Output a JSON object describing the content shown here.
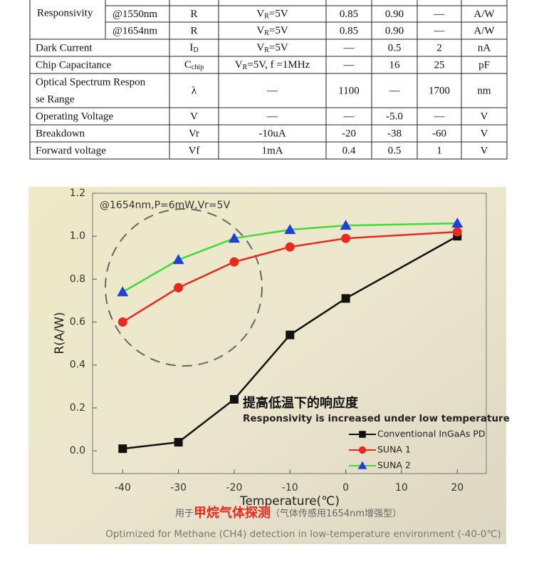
{
  "table": {
    "rows": [
      [
        "Responsivity",
        "@1550nm",
        "R",
        {
          "text": "V",
          "sub": "R",
          "after": "=5V"
        },
        "0.85",
        "0.90",
        "—",
        "A/W"
      ],
      [
        "@1654nm",
        "R",
        {
          "text": "V",
          "sub": "R",
          "after": "=5V"
        },
        "0.85",
        "0.90",
        "—",
        "A/W"
      ],
      [
        "Dark Current",
        {
          "text": "I",
          "sub": "D"
        },
        {
          "text": "V",
          "sub": "R",
          "after": "=5V"
        },
        "—",
        "0.5",
        "2",
        "nA"
      ],
      [
        "Chip Capacitance",
        {
          "text": "C",
          "sub": "chip"
        },
        {
          "text": "V",
          "sub": "R",
          "after": "=5V, f =1MHz"
        },
        "—",
        "16",
        "25",
        "pF"
      ],
      [
        [
          "Optical Spectrum Respon",
          "se Range"
        ],
        "λ",
        "—",
        "1100",
        "—",
        "1700",
        "nm"
      ],
      [
        "Operating Voltage",
        "V",
        "—",
        "—",
        "-5.0",
        "—",
        "V"
      ],
      [
        "Breakdown",
        "Vr",
        "-10uA",
        "-20",
        "-38",
        "-60",
        "V"
      ],
      [
        "Forward voltage",
        "Vf",
        "1mA",
        "0.4",
        "0.5",
        "1",
        "V"
      ]
    ]
  },
  "chart_data": {
    "type": "line",
    "annotation": "@1654nm,P=6mW,Vr=5V",
    "headline": "提高低温下的响应度",
    "subheadline": "Responsivity is increased under low temperature",
    "x_label": "Temperature(℃)",
    "y_label": "R(A/W)",
    "caption": [
      "用于",
      "甲烷气体探测",
      "（气体传感用1654nm增强型）"
    ],
    "footnote": "Optimized for Methane (CH4) detection in low-temperature environment (-40-0℃)",
    "x": [
      -40,
      -30,
      -20,
      -10,
      0,
      20
    ],
    "series": [
      {
        "name": "Conventional InGaAs PD",
        "color": "#111111",
        "marker_color": "#111111",
        "marker": "square",
        "values": [
          0.01,
          0.04,
          0.24,
          0.54,
          0.71,
          1.0
        ]
      },
      {
        "name": "SUNA 1",
        "color": "#e8291e",
        "marker_color": "#e8291e",
        "marker": "circle",
        "values": [
          0.6,
          0.76,
          0.88,
          0.95,
          0.99,
          1.02
        ]
      },
      {
        "name": "SUNA 2",
        "color": "#3fdc35",
        "marker_color": "#1f3fd6",
        "marker": "triangle",
        "values": [
          0.74,
          0.89,
          0.99,
          1.03,
          1.05,
          1.06
        ]
      }
    ],
    "xlim": [
      -45.4,
      25.2
    ],
    "ylim": [
      -0.106,
      1.2
    ],
    "xticks": [
      -40,
      -30,
      -20,
      -10,
      0,
      10,
      20
    ],
    "yticks": [
      {
        "value": 0,
        "label": "0.0"
      },
      {
        "value": 0.2,
        "label": "0.2"
      },
      {
        "value": 0.4,
        "label": "0.4"
      },
      {
        "value": 0.6,
        "label": "0.6"
      },
      {
        "value": 0.8,
        "label": "0.8"
      },
      {
        "value": 1.0,
        "label": "1.0"
      },
      {
        "value": 1.2,
        "label": "1.2"
      }
    ],
    "legend": "lower right"
  }
}
